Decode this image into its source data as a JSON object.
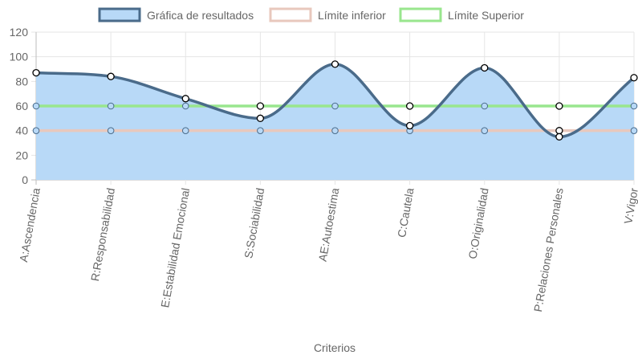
{
  "chart_data": {
    "type": "line",
    "xlabel": "Criterios",
    "ylabel": "",
    "ylim": [
      0,
      120
    ],
    "yticks": [
      0,
      20,
      40,
      60,
      80,
      100,
      120
    ],
    "grid": true,
    "legend_position": "top",
    "categories": [
      "A:Ascendencia",
      "R:Responsabilidad",
      "E:Estabilidad Emocional",
      "S:Sociabilidad",
      "AE:Autoestima",
      "C:Cautela",
      "O:Originalidad",
      "P:Relaciones Personales",
      "V:Vigor"
    ],
    "series": [
      {
        "name": "Gráfica de resultados",
        "values": [
          87,
          84,
          66,
          50,
          94,
          44,
          91,
          35,
          83
        ],
        "line_color": "#4a6b8a",
        "fill_color": "#b8d9f7",
        "filled": true
      },
      {
        "name": "Límite inferior",
        "values": [
          40,
          40,
          40,
          40,
          40,
          40,
          40,
          40,
          40
        ],
        "line_color": "#e8c8bd",
        "filled": false
      },
      {
        "name": "Límite Superior",
        "values": [
          60,
          60,
          60,
          60,
          60,
          60,
          60,
          60,
          60
        ],
        "line_color": "#99e68e",
        "filled": false
      }
    ]
  }
}
